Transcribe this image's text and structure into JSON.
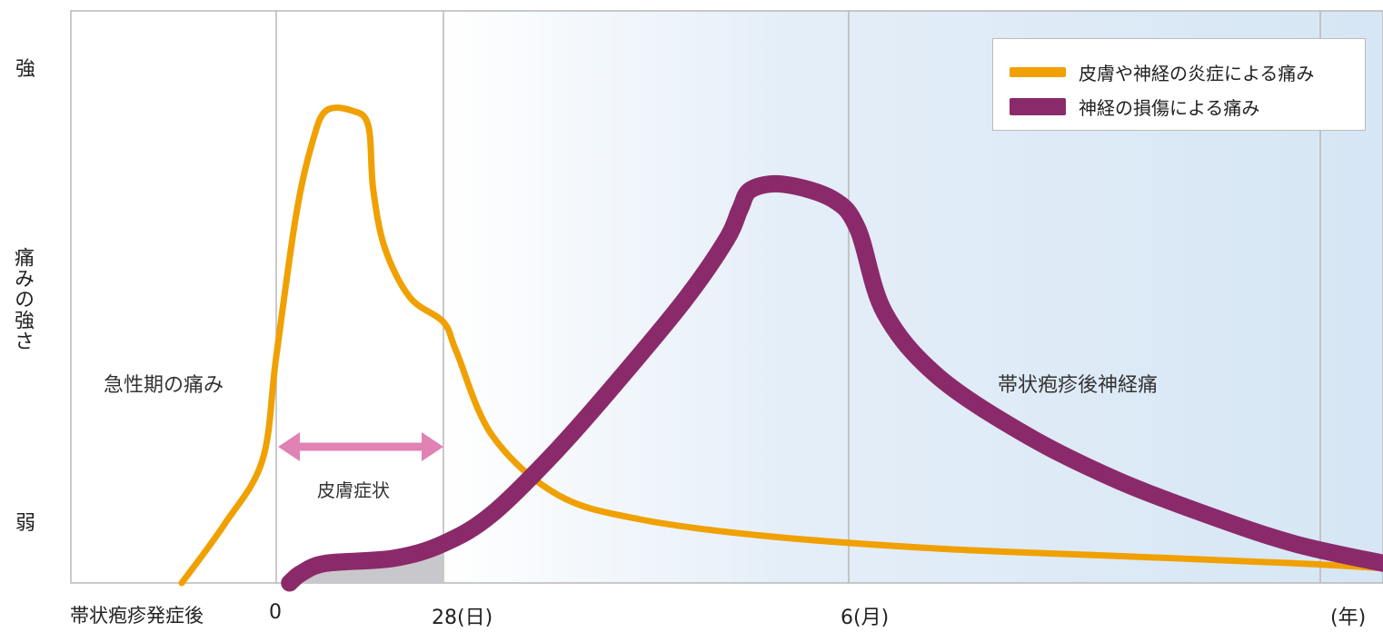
{
  "chart_data": {
    "type": "line",
    "title": "",
    "xlabel": "帯状疱疹発症後",
    "ylabel": "痛みの強さ",
    "y_axis": {
      "top_label": "強",
      "bottom_label": "弱"
    },
    "x_ticks": [
      "0",
      "28(日)",
      "6(月)",
      "(年)"
    ],
    "regions": [
      {
        "label": "急性期の痛み"
      },
      {
        "label": "帯状疱疹後神経痛"
      }
    ],
    "annotation": {
      "label": "皮膚症状",
      "color": "#e082b4"
    },
    "legend": {
      "position": "top-right"
    },
    "series": [
      {
        "name": "皮膚や神経の炎症による痛み",
        "color": "#f0a000",
        "points": [
          [
            -0.55,
            0.0
          ],
          [
            -0.3,
            0.12
          ],
          [
            -0.08,
            0.25
          ],
          [
            0.0,
            0.46
          ],
          [
            0.12,
            0.75
          ],
          [
            0.22,
            0.9
          ],
          [
            0.3,
            0.96
          ],
          [
            0.45,
            0.96
          ],
          [
            0.55,
            0.93
          ],
          [
            0.58,
            0.8
          ],
          [
            0.65,
            0.68
          ],
          [
            0.8,
            0.58
          ],
          [
            1.0,
            0.53
          ],
          [
            1.08,
            0.47
          ],
          [
            1.3,
            0.3
          ],
          [
            1.7,
            0.18
          ],
          [
            2.2,
            0.13
          ],
          [
            3.0,
            0.095
          ],
          [
            4.0,
            0.07
          ],
          [
            5.0,
            0.055
          ],
          [
            6.0,
            0.04
          ],
          [
            6.5,
            0.03
          ]
        ]
      },
      {
        "name": "神経の損傷による痛み",
        "color": "#8b2a6a",
        "points": [
          [
            0.08,
            0.0
          ],
          [
            0.15,
            0.02
          ],
          [
            0.3,
            0.04
          ],
          [
            0.7,
            0.05
          ],
          [
            1.0,
            0.08
          ],
          [
            1.3,
            0.14
          ],
          [
            1.7,
            0.27
          ],
          [
            2.1,
            0.42
          ],
          [
            2.5,
            0.58
          ],
          [
            2.75,
            0.7
          ],
          [
            2.83,
            0.76
          ],
          [
            2.9,
            0.8
          ],
          [
            3.1,
            0.81
          ],
          [
            3.4,
            0.78
          ],
          [
            3.55,
            0.72
          ],
          [
            3.7,
            0.55
          ],
          [
            4.0,
            0.42
          ],
          [
            4.5,
            0.3
          ],
          [
            5.0,
            0.21
          ],
          [
            5.5,
            0.14
          ],
          [
            6.0,
            0.08
          ],
          [
            6.5,
            0.04
          ]
        ]
      }
    ],
    "grid": false
  }
}
